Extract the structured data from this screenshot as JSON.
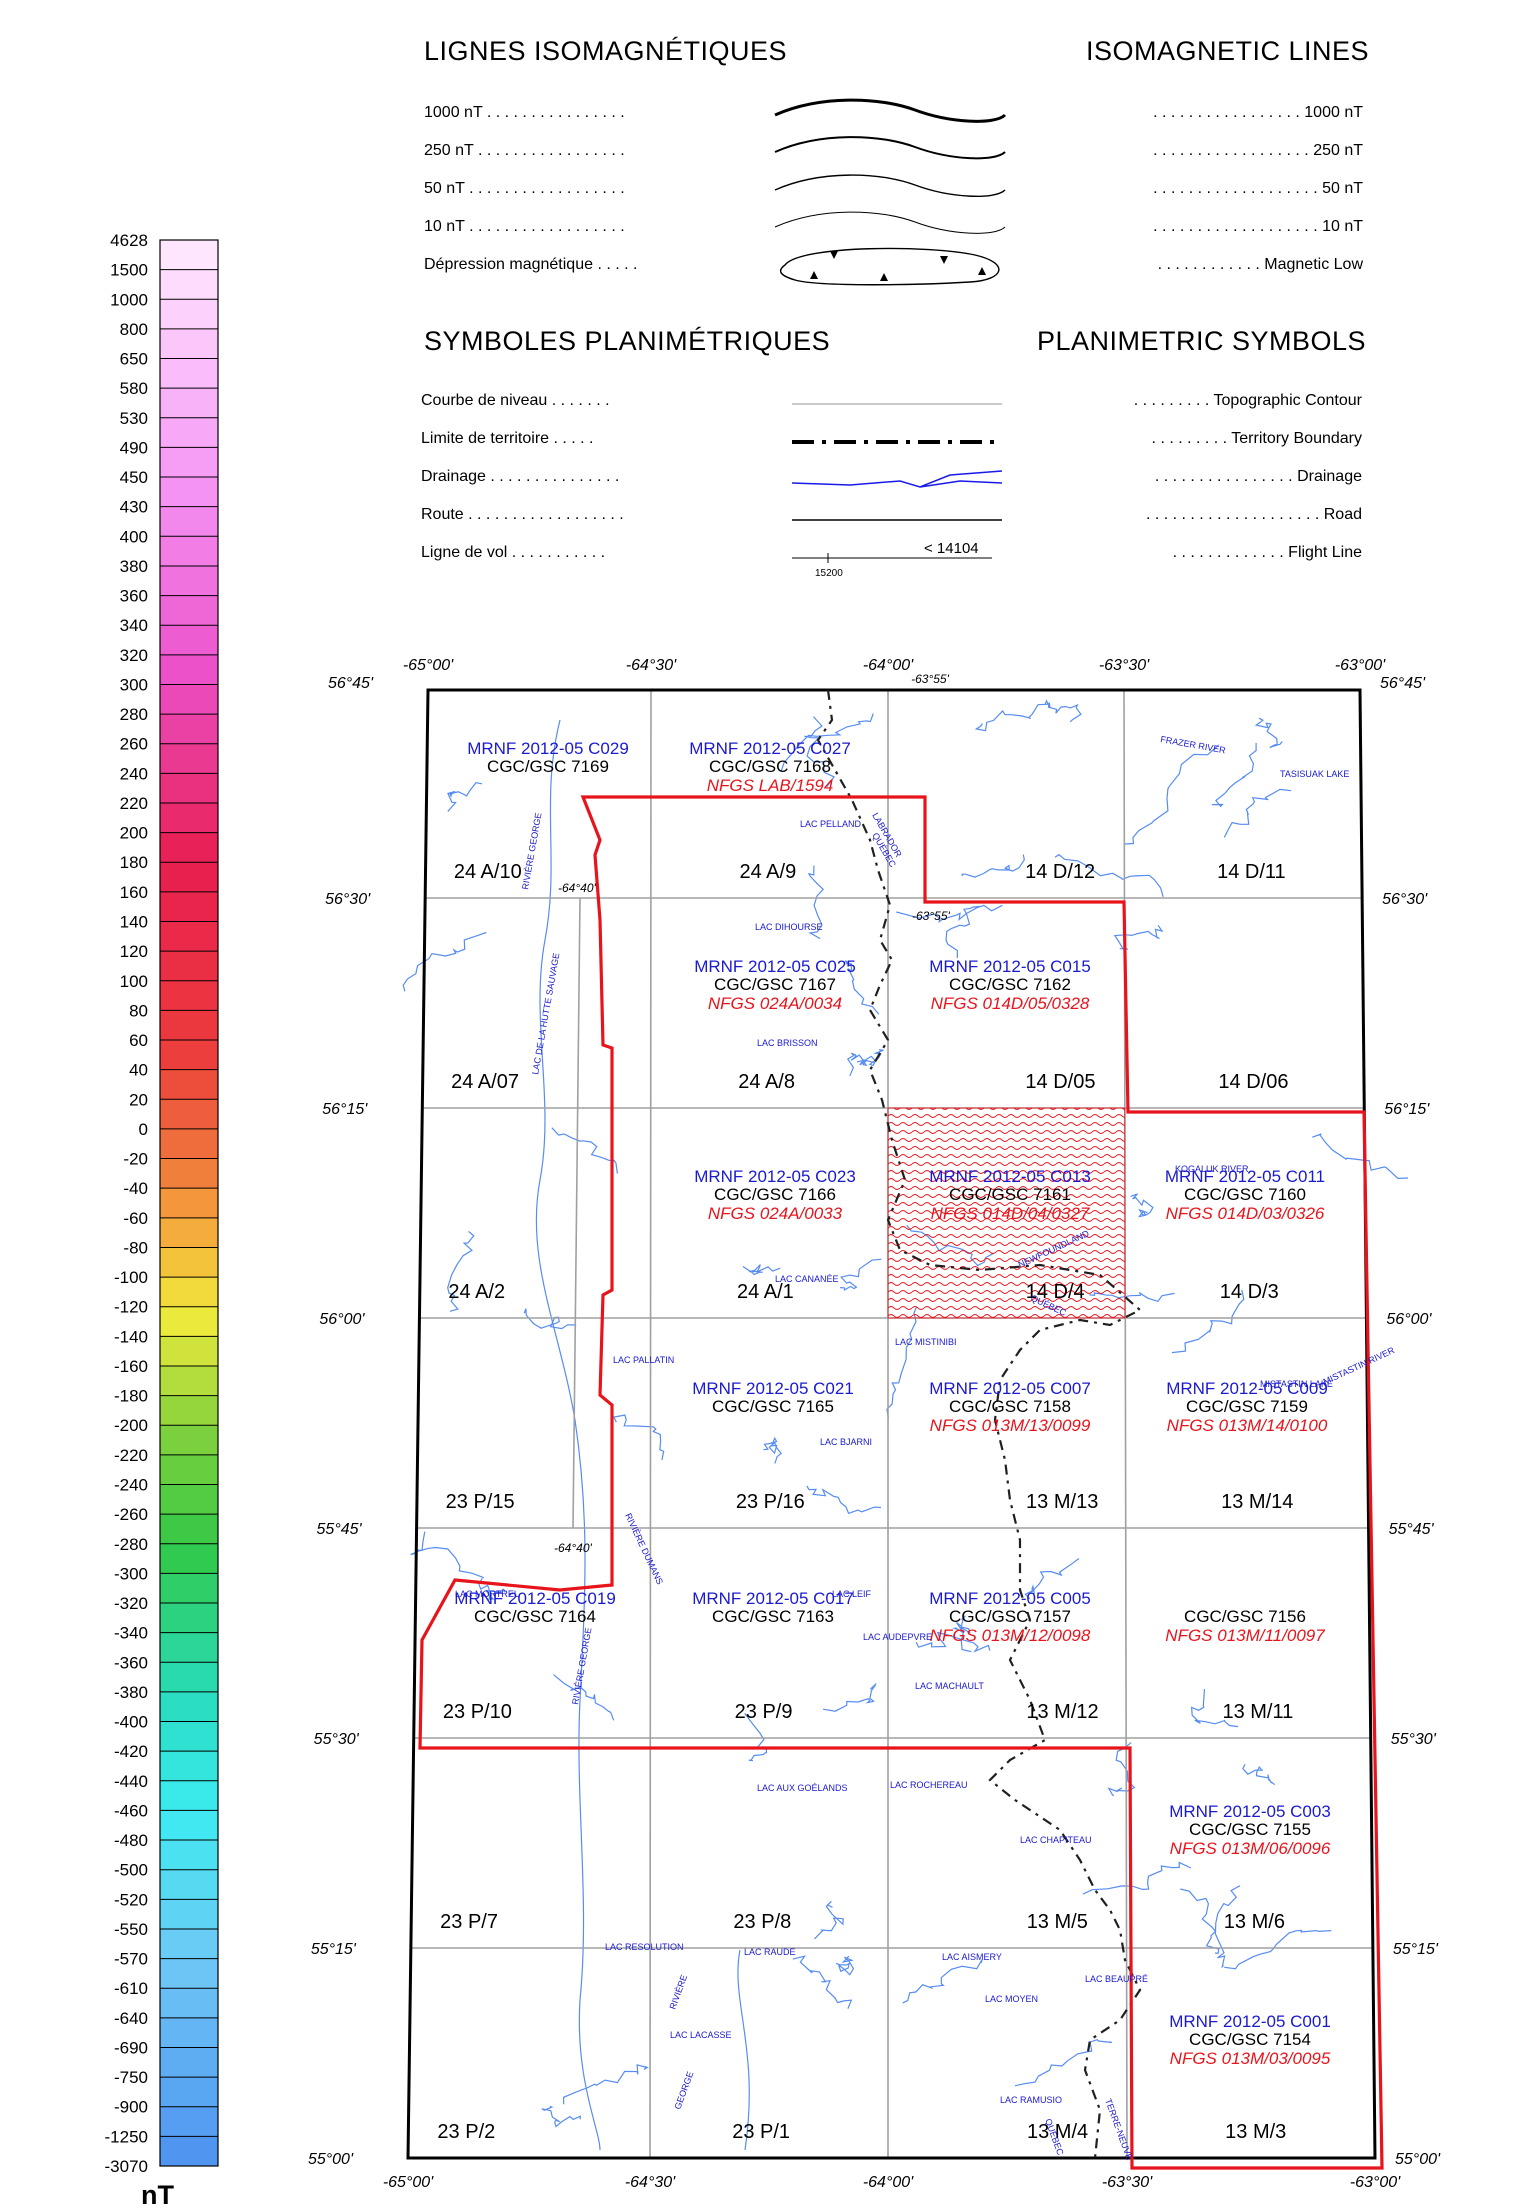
{
  "colorbar": {
    "labels": [
      "4628",
      "1500",
      "1000",
      "800",
      "650",
      "580",
      "530",
      "490",
      "450",
      "430",
      "400",
      "380",
      "360",
      "340",
      "320",
      "300",
      "280",
      "260",
      "240",
      "220",
      "200",
      "180",
      "160",
      "140",
      "120",
      "100",
      "80",
      "60",
      "40",
      "20",
      "0",
      "-20",
      "-40",
      "-60",
      "-80",
      "-100",
      "-120",
      "-140",
      "-160",
      "-180",
      "-200",
      "-220",
      "-240",
      "-260",
      "-280",
      "-300",
      "-320",
      "-340",
      "-360",
      "-380",
      "-400",
      "-420",
      "-440",
      "-460",
      "-480",
      "-500",
      "-520",
      "-550",
      "-570",
      "-610",
      "-640",
      "-690",
      "-750",
      "-900",
      "-1250",
      "-3070"
    ],
    "unit": "nT"
  },
  "legend": {
    "iso_title_fr": "LIGNES ISOMAGNÉTIQUES",
    "iso_title_en": "ISOMAGNETIC LINES",
    "iso_rows": [
      {
        "fr": "1000 nT",
        "en": "1000 nT"
      },
      {
        "fr": "250 nT",
        "en": "250 nT"
      },
      {
        "fr": "50 nT",
        "en": "50 nT"
      },
      {
        "fr": "10 nT",
        "en": "10 nT"
      },
      {
        "fr": "Dépression magnétique",
        "en": "Magnetic Low"
      }
    ],
    "plan_title_fr": "SYMBOLES PLANIMÉTRIQUES",
    "plan_title_en": "PLANIMETRIC SYMBOLS",
    "plan_rows": [
      {
        "fr": "Courbe de niveau",
        "en": "Topographic Contour"
      },
      {
        "fr": "Limite de territoire",
        "en": "Territory Boundary"
      },
      {
        "fr": "Drainage",
        "en": "Drainage"
      },
      {
        "fr": "Route",
        "en": "Road"
      },
      {
        "fr": "Ligne de vol",
        "en": "Flight Line"
      }
    ],
    "flight_label": "< 14104",
    "flight_tick": "15200"
  },
  "map": {
    "top_lon": [
      "-65°00'",
      "-64°30'",
      "-64°00'",
      "-63°30'",
      "-63°00'"
    ],
    "top_extra": "-63°55'",
    "bottom_lon": [
      "-65°00'",
      "-64°30'",
      "-64°00'",
      "-63°30'",
      "-63°00'"
    ],
    "left_lat": [
      "56°45'",
      "56°30'",
      "56°15'",
      "56°00'",
      "55°45'",
      "55°30'",
      "55°15'",
      "55°00'"
    ],
    "right_lat": [
      "56°45'",
      "56°30'",
      "56°15'",
      "56°00'",
      "55°45'",
      "55°30'",
      "55°15'",
      "55°00'"
    ],
    "inner_labels": [
      "-64°40'",
      "-63°55'",
      "-64°40'"
    ],
    "sheets": [
      [
        "24 A/10",
        "24 A/9",
        "14 D/12",
        "14 D/11"
      ],
      [
        "24 A/07",
        "24 A/8",
        "14 D/05",
        "14 D/06"
      ],
      [
        "24 A/2",
        "24 A/1",
        "14 D/4",
        "14 D/3"
      ],
      [
        "23 P/15",
        "23 P/16",
        "13 M/13",
        "13 M/14"
      ],
      [
        "23 P/10",
        "23 P/9",
        "13 M/12",
        "13 M/11"
      ],
      [
        "23 P/7",
        "23 P/8",
        "13 M/5",
        "13 M/6"
      ],
      [
        "23 P/2",
        "23 P/1",
        "13 M/4",
        "13 M/3"
      ]
    ],
    "blocks": [
      {
        "mrnf": "MRNF 2012-05 C029",
        "gsc": "CGC/GSC 7169",
        "nfgs": ""
      },
      {
        "mrnf": "MRNF 2012-05 C027",
        "gsc": "CGC/GSC 7168",
        "nfgs": "NFGS LAB/1594"
      },
      {
        "mrnf": "MRNF 2012-05 C025",
        "gsc": "CGC/GSC 7167",
        "nfgs": "NFGS 024A/0034"
      },
      {
        "mrnf": "MRNF 2012-05 C015",
        "gsc": "CGC/GSC 7162",
        "nfgs": "NFGS 014D/05/0328"
      },
      {
        "mrnf": "MRNF 2012-05 C023",
        "gsc": "CGC/GSC 7166",
        "nfgs": "NFGS 024A/0033"
      },
      {
        "mrnf": "MRNF 2012-05 C013",
        "gsc": "CGC/GSC 7161",
        "nfgs": "NFGS 014D/04/0327"
      },
      {
        "mrnf": "MRNF 2012-05 C011",
        "gsc": "CGC/GSC 7160",
        "nfgs": "NFGS 014D/03/0326"
      },
      {
        "mrnf": "MRNF 2012-05 C021",
        "gsc": "CGC/GSC 7165",
        "nfgs": ""
      },
      {
        "mrnf": "MRNF 2012-05 C007",
        "gsc": "CGC/GSC 7158",
        "nfgs": "NFGS 013M/13/0099"
      },
      {
        "mrnf": "MRNF 2012-05 C009",
        "gsc": "CGC/GSC 7159",
        "nfgs": "NFGS 013M/14/0100"
      },
      {
        "mrnf": "MRNF 2012-05 C019",
        "gsc": "CGC/GSC 7164",
        "nfgs": ""
      },
      {
        "mrnf": "MRNF 2012-05 C017",
        "gsc": "CGC/GSC 7163",
        "nfgs": ""
      },
      {
        "mrnf": "MRNF 2012-05 C005",
        "gsc": "CGC/GSC 7157",
        "nfgs": "NFGS 013M/12/0098"
      },
      {
        "mrnf": "",
        "gsc": "CGC/GSC 7156",
        "nfgs": "NFGS 013M/11/0097"
      },
      {
        "mrnf": "MRNF 2012-05 C003",
        "gsc": "CGC/GSC 7155",
        "nfgs": "NFGS 013M/06/0096"
      },
      {
        "mrnf": "MRNF 2012-05 C001",
        "gsc": "CGC/GSC 7154",
        "nfgs": "NFGS 013M/03/0095"
      }
    ],
    "place_names": [
      "FRAZER RIVER",
      "TASISUAK LAKE",
      "LAC PELLAND",
      "LABRADOR",
      "QUÉBEC",
      "LAC DIHOURSE",
      "LAC BRISSON",
      "RIVIÈRE GEORGE",
      "LAC DE LA HUTTE SAUVAGE",
      "KOGALUK RIVER",
      "LAC CANANÉE",
      "NEWFOUNDLAND",
      "QUÉBEC",
      "LAC PALLATIN",
      "LAC MISTINIBI",
      "MISTASTIN LAKE",
      "MISTASTIN RIVER",
      "LAC BJARNI",
      "RIVIÈRE DUMANS",
      "LAC MORTREL",
      "LAC LEIF",
      "LAC AUDEPVRE",
      "LAC MACHAULT",
      "RIVIÈRE GEORGE",
      "LAC AUX GOÉLANDS",
      "LAC ROCHEREAU",
      "LAC CHAPITEAU",
      "LAC RESOLUTION",
      "LAC RAUDE",
      "LAC AISMERY",
      "LAC BEAUPRÉ",
      "LAC MOYEN",
      "RIVIÈRE",
      "LAC LACASSE",
      "GEORGE",
      "LAC RAMUSIO",
      "QUÉBEC",
      "TERRE-NEUVE"
    ]
  },
  "colors": {
    "boundary_red": "#e8141c",
    "mrnf_blue": "#1a1ad0",
    "nfgs_red": "#e8141c",
    "drainage_blue": "#1a1ae8",
    "grid_gray": "#a0a0a0"
  }
}
